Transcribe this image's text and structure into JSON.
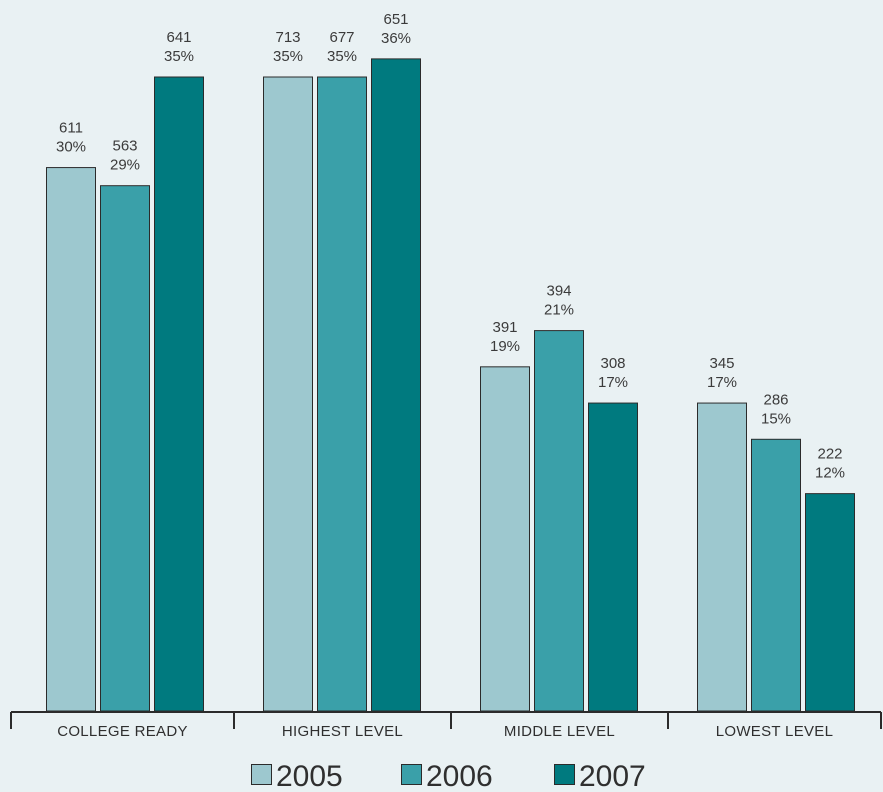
{
  "chart_data": {
    "type": "bar",
    "title": "",
    "xlabel": "",
    "ylabel": "",
    "categories": [
      "COLLEGE READY",
      "HIGHEST LEVEL",
      "MIDDLE LEVEL",
      "LOWEST LEVEL"
    ],
    "series": [
      {
        "name": "2005",
        "color": "#9dc8cf",
        "values": [
          611,
          713,
          391,
          345
        ],
        "percents": [
          "30%",
          "35%",
          "19%",
          "17%"
        ]
      },
      {
        "name": "2006",
        "color": "#3aa0a9",
        "values": [
          563,
          677,
          394,
          286
        ],
        "percents": [
          "29%",
          "35%",
          "21%",
          "15%"
        ]
      },
      {
        "name": "2007",
        "color": "#007a7f",
        "values": [
          641,
          651,
          308,
          222
        ],
        "percents": [
          "35%",
          "36%",
          "17%",
          "12%"
        ]
      }
    ],
    "bar_level_pct": [
      [
        30,
        35,
        19,
        17
      ],
      [
        29,
        35,
        21,
        15
      ],
      [
        35,
        36,
        17,
        12
      ]
    ],
    "ylim": [
      0,
      40
    ],
    "grid": false,
    "legend": "bottom"
  }
}
